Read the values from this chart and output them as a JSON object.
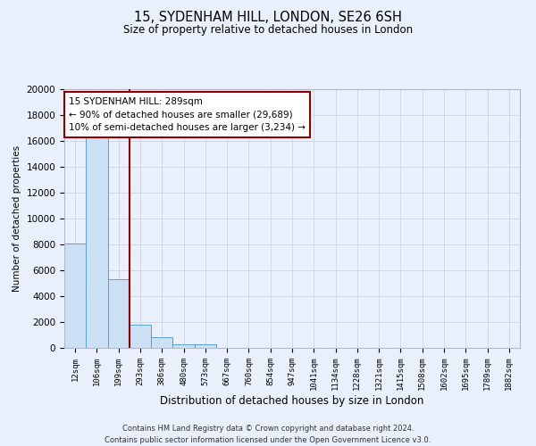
{
  "title": "15, SYDENHAM HILL, LONDON, SE26 6SH",
  "subtitle": "Size of property relative to detached houses in London",
  "xlabel": "Distribution of detached houses by size in London",
  "ylabel": "Number of detached properties",
  "bar_labels": [
    "12sqm",
    "106sqm",
    "199sqm",
    "293sqm",
    "386sqm",
    "480sqm",
    "573sqm",
    "667sqm",
    "760sqm",
    "854sqm",
    "947sqm",
    "1041sqm",
    "1134sqm",
    "1228sqm",
    "1321sqm",
    "1415sqm",
    "1508sqm",
    "1602sqm",
    "1695sqm",
    "1789sqm",
    "1882sqm"
  ],
  "bar_values": [
    8100,
    16600,
    5300,
    1800,
    800,
    300,
    250,
    0,
    0,
    0,
    0,
    0,
    0,
    0,
    0,
    0,
    0,
    0,
    0,
    0,
    0
  ],
  "bar_color": "#cce0f5",
  "bar_edge_color": "#5aa0d0",
  "grid_color": "#d0d8e8",
  "background_color": "#eaf0fb",
  "vline_color": "#8b0000",
  "annotation_box_color": "#ffffff",
  "annotation_border_color": "#8b0000",
  "annotation_title": "15 SYDENHAM HILL: 289sqm",
  "annotation_line1": "← 90% of detached houses are smaller (29,689)",
  "annotation_line2": "10% of semi-detached houses are larger (3,234) →",
  "footer_line1": "Contains HM Land Registry data © Crown copyright and database right 2024.",
  "footer_line2": "Contains public sector information licensed under the Open Government Licence v3.0.",
  "ylim": [
    0,
    20000
  ],
  "yticks": [
    0,
    2000,
    4000,
    6000,
    8000,
    10000,
    12000,
    14000,
    16000,
    18000,
    20000
  ]
}
